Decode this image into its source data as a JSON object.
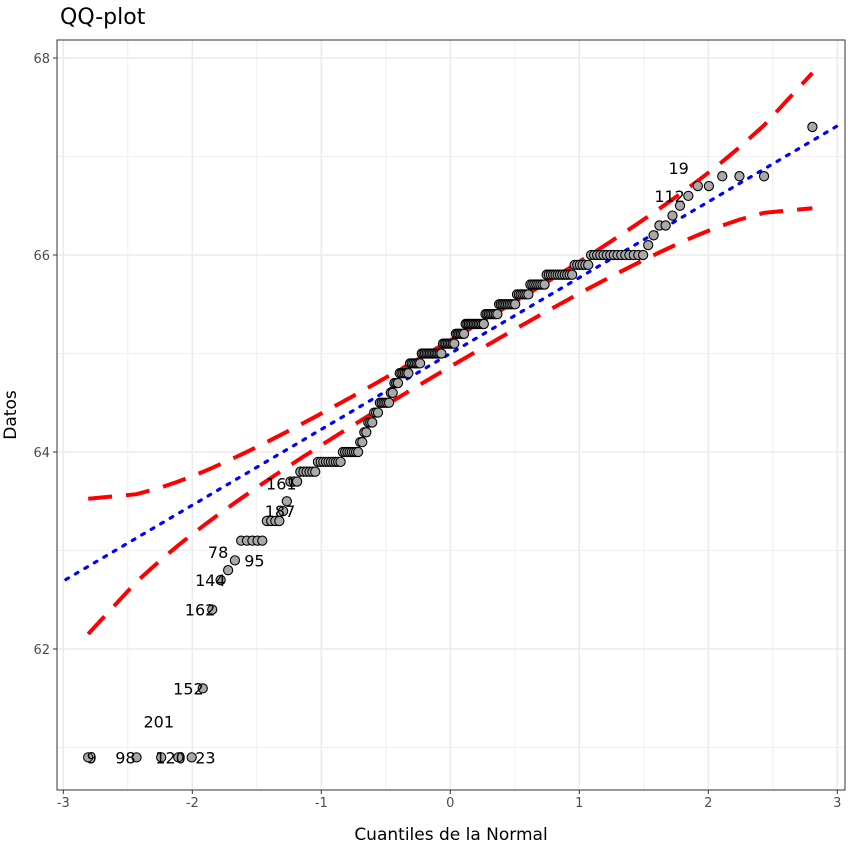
{
  "chart_data": {
    "type": "scatter",
    "title": "QQ-plot",
    "xlabel": "Cuantiles de la Normal",
    "ylabel": "Datos",
    "xlim": [
      -3,
      3
    ],
    "ylim": [
      60.6,
      68.2
    ],
    "x_ticks": [
      "-3",
      "-2",
      "-1",
      "0",
      "1",
      "2",
      "3"
    ],
    "y_ticks": [
      "62",
      "64",
      "66",
      "68"
    ],
    "grid": true,
    "sample_counts": [
      {
        "y": 60.9,
        "n": 5
      },
      {
        "y": 61.6,
        "n": 1
      },
      {
        "y": 62.4,
        "n": 1
      },
      {
        "y": 62.7,
        "n": 1
      },
      {
        "y": 62.8,
        "n": 1
      },
      {
        "y": 62.9,
        "n": 1
      },
      {
        "y": 63.1,
        "n": 5
      },
      {
        "y": 63.3,
        "n": 4
      },
      {
        "y": 63.4,
        "n": 1
      },
      {
        "y": 63.5,
        "n": 1
      },
      {
        "y": 63.7,
        "n": 3
      },
      {
        "y": 63.8,
        "n": 6
      },
      {
        "y": 63.9,
        "n": 10
      },
      {
        "y": 64.0,
        "n": 8
      },
      {
        "y": 64.1,
        "n": 2
      },
      {
        "y": 64.2,
        "n": 2
      },
      {
        "y": 64.3,
        "n": 3
      },
      {
        "y": 64.4,
        "n": 3
      },
      {
        "y": 64.5,
        "n": 6
      },
      {
        "y": 64.6,
        "n": 2
      },
      {
        "y": 64.7,
        "n": 3
      },
      {
        "y": 64.8,
        "n": 6
      },
      {
        "y": 64.9,
        "n": 7
      },
      {
        "y": 65.0,
        "n": 13
      },
      {
        "y": 65.1,
        "n": 8
      },
      {
        "y": 65.2,
        "n": 6
      },
      {
        "y": 65.3,
        "n": 12
      },
      {
        "y": 65.4,
        "n": 8
      },
      {
        "y": 65.5,
        "n": 10
      },
      {
        "y": 65.6,
        "n": 7
      },
      {
        "y": 65.7,
        "n": 8
      },
      {
        "y": 65.8,
        "n": 12
      },
      {
        "y": 65.9,
        "n": 6
      },
      {
        "y": 66.0,
        "n": 15
      },
      {
        "y": 66.1,
        "n": 1
      },
      {
        "y": 66.2,
        "n": 1
      },
      {
        "y": 66.3,
        "n": 2
      },
      {
        "y": 66.4,
        "n": 1
      },
      {
        "y": 66.5,
        "n": 1
      },
      {
        "y": 66.6,
        "n": 1
      },
      {
        "y": 66.7,
        "n": 2
      },
      {
        "y": 66.8,
        "n": 3
      },
      {
        "y": 67.3,
        "n": 1
      }
    ],
    "reference_line": {
      "intercept": 65.0,
      "slope": 0.77,
      "color": "#0000ff",
      "style": "dotted"
    },
    "envelope": {
      "level": 0.95,
      "color": "#ff0000",
      "style": "dashed"
    },
    "point_fill": "#a9a9a9",
    "point_stroke": "#000000",
    "point_labels": [
      {
        "text": "9",
        "x": -2.78,
        "y": 60.9
      },
      {
        "text": "98",
        "x": -2.72,
        "y": 60.9
      },
      {
        "text": "120",
        "x": -2.37,
        "y": 60.9
      },
      {
        "text": "201",
        "x": -2.26,
        "y": 60.9
      },
      {
        "text": "23",
        "x": -2.1,
        "y": 60.9
      },
      {
        "text": "152",
        "x": -2.03,
        "y": 61.6
      },
      {
        "text": "162",
        "x": -1.94,
        "y": 62.4
      },
      {
        "text": "144",
        "x": -1.86,
        "y": 62.7
      },
      {
        "text": "78",
        "x": -1.8,
        "y": 62.8
      },
      {
        "text": "95",
        "x": -1.72,
        "y": 62.9
      },
      {
        "text": "187",
        "x": -1.32,
        "y": 63.4
      },
      {
        "text": "161",
        "x": -1.31,
        "y": 63.5
      },
      {
        "text": "112",
        "x": 1.7,
        "y": 66.6
      },
      {
        "text": "19",
        "x": 1.77,
        "y": 66.7
      }
    ]
  }
}
